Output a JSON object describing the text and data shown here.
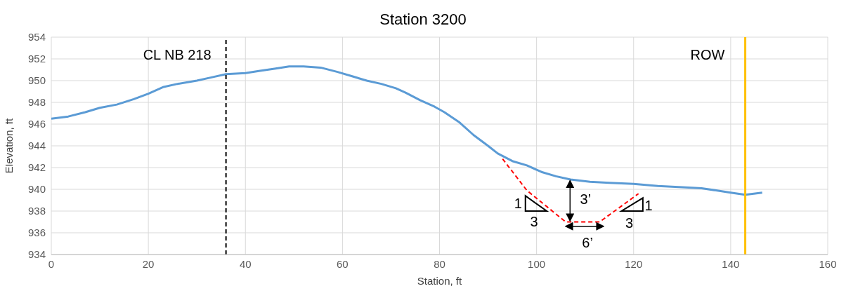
{
  "chart_data": {
    "type": "line",
    "title": "Station 3200",
    "xlabel": "Station, ft",
    "ylabel": "Elevation, ft",
    "xlim": [
      0,
      160
    ],
    "xticks": [
      0,
      20,
      40,
      60,
      80,
      100,
      120,
      140,
      160
    ],
    "ylim": [
      934,
      954
    ],
    "yticks": [
      934,
      936,
      938,
      940,
      942,
      944,
      946,
      948,
      950,
      952,
      954
    ],
    "grid": true,
    "marker": "none",
    "series": [
      {
        "color": "#5b9bd5",
        "line_style": "solid",
        "x": [
          0,
          3.5,
          7,
          10,
          13.5,
          17,
          20,
          23,
          26,
          30,
          33,
          36,
          40,
          43,
          46,
          49,
          52,
          55.5,
          59,
          62,
          65,
          68,
          71,
          73,
          76,
          79,
          81,
          84,
          87,
          90,
          92,
          95,
          98,
          101,
          104,
          107,
          111,
          115,
          120,
          125,
          130,
          134,
          137,
          140,
          143,
          146.5
        ],
        "values": [
          946.5,
          946.7,
          947.1,
          947.5,
          947.8,
          948.3,
          948.8,
          949.4,
          949.7,
          950.0,
          950.3,
          950.6,
          950.7,
          950.9,
          951.1,
          951.3,
          951.3,
          951.2,
          950.8,
          950.4,
          950.0,
          949.7,
          949.3,
          948.9,
          948.2,
          947.6,
          947.1,
          946.2,
          945.0,
          944.0,
          943.3,
          942.6,
          942.2,
          941.6,
          941.2,
          940.9,
          940.7,
          940.6,
          940.5,
          940.3,
          940.2,
          940.1,
          939.9,
          939.7,
          939.5,
          939.7
        ]
      },
      {
        "color": "#ff0000",
        "line_style": "dashed",
        "x": [
          93,
          98,
          106,
          113,
          121
        ],
        "values": [
          942.8,
          939.9,
          937.0,
          937.0,
          939.6
        ]
      }
    ],
    "ref_lines": [
      {
        "axis": "x",
        "value": 36,
        "label": "CL NB 218",
        "color": "#000000",
        "line_style": "dashed"
      },
      {
        "axis": "x",
        "value": 143,
        "label": "ROW",
        "color": "#ffc000",
        "line_style": "solid"
      }
    ],
    "annotations": [
      "1",
      "3",
      "3’",
      "6’",
      "1",
      "3"
    ]
  }
}
